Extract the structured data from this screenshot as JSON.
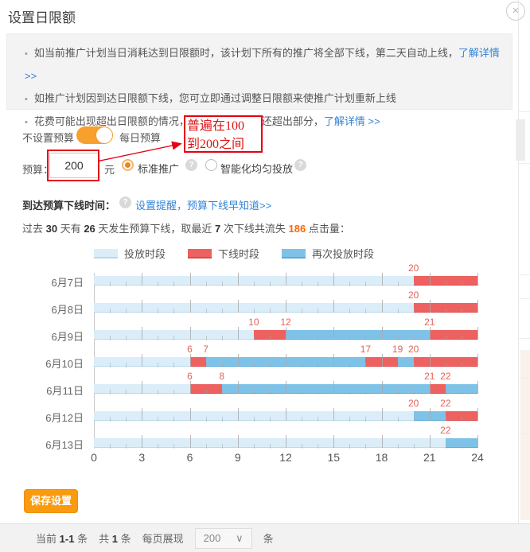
{
  "dialog": {
    "title": "设置日限额",
    "close_icon": "×",
    "notice_box": {
      "items": [
        {
          "text": "如当前推广计划当日消耗达到日限额时，该计划下所有的推广将全部下线，第二天自动上线，",
          "link": "了解详情 >>"
        },
        {
          "text": "如推广计划因到达日限额下线，您可立即通过调整日限额来使推广计划重新上线",
          "link": ""
        },
        {
          "text": "花费可能出现超出日限额的情况，但日终会自动返还超出部分，",
          "link": "了解详情 >>"
        }
      ]
    },
    "budget": {
      "toggle_left_label": "不设置预算",
      "toggle_right_label": "每日预算",
      "toggle_state": "on",
      "field_label": "预算：",
      "field_value": "200",
      "unit": "元",
      "plan_options": [
        {
          "label": "标准推广",
          "selected": true,
          "help_icon": "?"
        },
        {
          "label": "智能化均匀投放",
          "selected": false,
          "help_icon": "?"
        }
      ],
      "annotation": {
        "lines": [
          "普遍在100",
          "到200之间"
        ],
        "color": "#e60012"
      }
    },
    "offline_row": {
      "label": "到达预算下线时间：",
      "help_icon": "?",
      "link": "设置提醒，预算下线早知道>>"
    },
    "stats_line": {
      "parts": [
        {
          "t": "过去 "
        },
        {
          "t": "30",
          "b": true
        },
        {
          "t": " 天有 "
        },
        {
          "t": "26",
          "b": true
        },
        {
          "t": " 天发生预算下线，取最近 "
        },
        {
          "t": "7",
          "b": true
        },
        {
          "t": " 次下线共流失 "
        },
        {
          "t": "186",
          "hl": true
        },
        {
          "t": " 点击量："
        }
      ]
    },
    "save_button": "保存设置"
  },
  "chart_data": {
    "type": "timeline-bar",
    "unit": "hour",
    "xlim": [
      0,
      24
    ],
    "x_ticks": [
      0,
      3,
      6,
      9,
      12,
      15,
      18,
      21,
      24
    ],
    "legend": [
      {
        "label": "投放时段",
        "kind": "deliver",
        "color": "#dbedf8",
        "edge": "#b9d9eb"
      },
      {
        "label": "下线时段",
        "kind": "offline",
        "color": "#ed6161",
        "edge": "#d94b4b"
      },
      {
        "label": "再次投放时段",
        "kind": "redeliver",
        "color": "#7ec2e8",
        "edge": "#58a8d8"
      }
    ],
    "rows": [
      {
        "date": "6月7日",
        "segments": [
          {
            "start": 0,
            "end": 20,
            "kind": "deliver"
          },
          {
            "start": 20,
            "end": 24,
            "kind": "offline"
          }
        ],
        "markers": [
          20
        ]
      },
      {
        "date": "6月8日",
        "segments": [
          {
            "start": 0,
            "end": 20,
            "kind": "deliver"
          },
          {
            "start": 20,
            "end": 24,
            "kind": "offline"
          }
        ],
        "markers": [
          20
        ]
      },
      {
        "date": "6月9日",
        "segments": [
          {
            "start": 0,
            "end": 10,
            "kind": "deliver"
          },
          {
            "start": 10,
            "end": 12,
            "kind": "offline"
          },
          {
            "start": 12,
            "end": 21,
            "kind": "redeliver"
          },
          {
            "start": 21,
            "end": 24,
            "kind": "offline"
          }
        ],
        "markers": [
          10,
          12,
          21
        ]
      },
      {
        "date": "6月10日",
        "segments": [
          {
            "start": 0,
            "end": 6,
            "kind": "deliver"
          },
          {
            "start": 6,
            "end": 7,
            "kind": "offline"
          },
          {
            "start": 7,
            "end": 17,
            "kind": "redeliver"
          },
          {
            "start": 17,
            "end": 19,
            "kind": "offline"
          },
          {
            "start": 19,
            "end": 20,
            "kind": "redeliver"
          },
          {
            "start": 20,
            "end": 24,
            "kind": "offline"
          }
        ],
        "markers": [
          6,
          7,
          17,
          19,
          20
        ]
      },
      {
        "date": "6月11日",
        "segments": [
          {
            "start": 0,
            "end": 6,
            "kind": "deliver"
          },
          {
            "start": 6,
            "end": 8,
            "kind": "offline"
          },
          {
            "start": 8,
            "end": 21,
            "kind": "redeliver"
          },
          {
            "start": 21,
            "end": 22,
            "kind": "offline"
          },
          {
            "start": 22,
            "end": 24,
            "kind": "redeliver"
          }
        ],
        "markers": [
          6,
          8,
          21,
          22
        ]
      },
      {
        "date": "6月12日",
        "segments": [
          {
            "start": 0,
            "end": 20,
            "kind": "deliver"
          },
          {
            "start": 20,
            "end": 22,
            "kind": "redeliver"
          },
          {
            "start": 22,
            "end": 24,
            "kind": "offline"
          }
        ],
        "markers": [
          20,
          22
        ]
      },
      {
        "date": "6月13日",
        "segments": [
          {
            "start": 0,
            "end": 22,
            "kind": "deliver"
          },
          {
            "start": 22,
            "end": 24,
            "kind": "redeliver"
          }
        ],
        "markers": [
          22
        ]
      }
    ]
  },
  "footer": {
    "current_label": "当前",
    "current_range": "1-1",
    "unit1": "条",
    "total_label": "共",
    "total": "1",
    "unit2": "条",
    "per_page_label": "每页展现",
    "per_page_value": "200",
    "chevron": "∨",
    "unit3": "条"
  }
}
